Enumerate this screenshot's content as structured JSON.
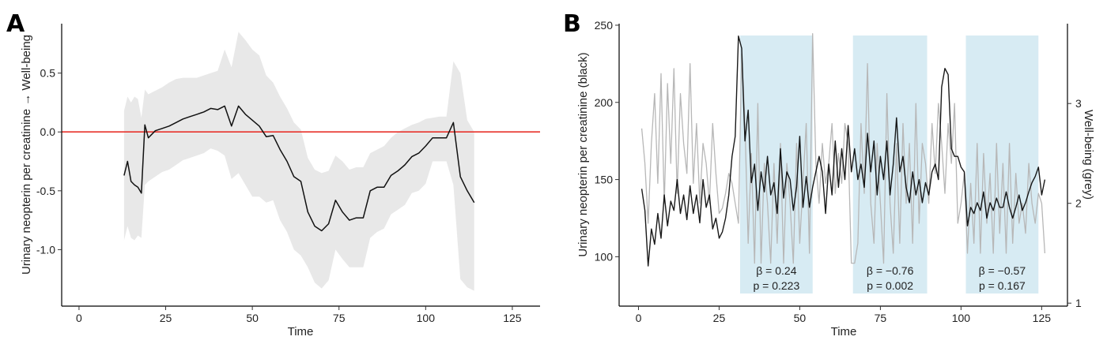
{
  "chart_data": [
    {
      "panel": "A",
      "type": "line",
      "xlabel": "Time",
      "ylabel": "Urinary neopterin per creatinine → Well-being",
      "xlim": [
        -5,
        133
      ],
      "ylim": [
        -1.48,
        0.92
      ],
      "xticks": [
        0,
        25,
        50,
        75,
        100,
        125
      ],
      "yticks": [
        {
          "value": 0.5,
          "label": "0.5"
        },
        {
          "value": 0.0,
          "label": "0.0"
        },
        {
          "value": -0.5,
          "label": "-0.5"
        },
        {
          "value": -1.0,
          "label": "-1.0"
        }
      ],
      "reference_line": {
        "y": 0,
        "color": "#e8322b"
      },
      "band_color": "#e8e8e8",
      "line_color": "#111111",
      "series": [
        {
          "x": [
            13,
            14,
            15,
            16,
            17,
            18,
            19,
            20,
            22,
            24,
            26,
            28,
            30,
            32,
            34,
            36,
            38,
            40,
            42,
            44,
            46,
            48,
            50,
            52,
            54,
            56,
            58,
            60,
            62,
            64,
            66,
            68,
            70,
            72,
            74,
            76,
            78,
            80,
            82,
            84,
            86,
            88,
            90,
            92,
            94,
            96,
            98,
            100,
            102,
            104,
            106,
            108,
            110,
            112,
            114
          ],
          "y": [
            -0.37,
            -0.25,
            -0.42,
            -0.45,
            -0.47,
            -0.52,
            0.06,
            -0.05,
            0.01,
            0.03,
            0.05,
            0.08,
            0.11,
            0.13,
            0.15,
            0.17,
            0.2,
            0.19,
            0.22,
            0.05,
            0.22,
            0.15,
            0.1,
            0.05,
            -0.04,
            -0.03,
            -0.15,
            -0.25,
            -0.38,
            -0.42,
            -0.68,
            -0.8,
            -0.84,
            -0.78,
            -0.58,
            -0.68,
            -0.75,
            -0.73,
            -0.73,
            -0.5,
            -0.47,
            -0.47,
            -0.37,
            -0.33,
            -0.28,
            -0.21,
            -0.18,
            -0.12,
            -0.05,
            -0.05,
            -0.05,
            0.08,
            -0.38,
            -0.5,
            -0.6
          ],
          "upper": [
            0.18,
            0.3,
            0.25,
            0.3,
            0.28,
            0.12,
            0.36,
            0.32,
            0.35,
            0.38,
            0.42,
            0.45,
            0.46,
            0.46,
            0.46,
            0.48,
            0.5,
            0.52,
            0.7,
            0.55,
            0.85,
            0.78,
            0.7,
            0.65,
            0.48,
            0.42,
            0.3,
            0.2,
            0.08,
            0.02,
            -0.22,
            -0.32,
            -0.35,
            -0.33,
            -0.2,
            -0.25,
            -0.32,
            -0.3,
            -0.3,
            -0.18,
            -0.15,
            -0.12,
            -0.05,
            0.0,
            0.03,
            0.06,
            0.08,
            0.11,
            0.12,
            0.13,
            0.13,
            0.6,
            0.5,
            0.1,
            0.0
          ],
          "lower": [
            -0.92,
            -0.8,
            -0.9,
            -0.92,
            -0.88,
            -0.9,
            -0.45,
            -0.42,
            -0.38,
            -0.34,
            -0.32,
            -0.28,
            -0.24,
            -0.22,
            -0.2,
            -0.18,
            -0.14,
            -0.16,
            -0.2,
            -0.4,
            -0.35,
            -0.45,
            -0.55,
            -0.55,
            -0.6,
            -0.58,
            -0.75,
            -0.85,
            -1.0,
            -1.05,
            -1.15,
            -1.28,
            -1.33,
            -1.26,
            -1.0,
            -1.08,
            -1.15,
            -1.15,
            -1.15,
            -0.9,
            -0.85,
            -0.82,
            -0.7,
            -0.66,
            -0.62,
            -0.52,
            -0.5,
            -0.44,
            -0.25,
            -0.25,
            -0.25,
            -0.45,
            -1.25,
            -1.32,
            -1.35
          ]
        }
      ]
    },
    {
      "panel": "B",
      "type": "line",
      "xlabel": "Time",
      "ylabel": "Urinary neopterin per creatinine (black)",
      "ylabel_right": "Well-being (grey)",
      "xlim": [
        -6,
        133
      ],
      "ylim": [
        68,
        251
      ],
      "ylim_right": [
        0.97,
        3.8
      ],
      "xticks": [
        0,
        25,
        50,
        75,
        100,
        125
      ],
      "yticks": [
        100,
        150,
        200,
        250
      ],
      "yticks_right": [
        1,
        2,
        3
      ],
      "shaded_regions": [
        {
          "x0": 31.5,
          "x1": 54,
          "beta": "β = 0.24",
          "p": "p = 0.223"
        },
        {
          "x0": 66.5,
          "x1": 89.5,
          "beta": "β = −0.76",
          "p": "p = 0.002"
        },
        {
          "x0": 101.5,
          "x1": 124,
          "beta": "β = −0.57",
          "p": "p = 0.167"
        }
      ],
      "shade_color": "#d7ebf3",
      "series": [
        {
          "axis": "left",
          "color": "#000000",
          "x": [
            1,
            2,
            3,
            4,
            5,
            6,
            7,
            8,
            9,
            10,
            11,
            12,
            13,
            14,
            15,
            16,
            17,
            18,
            19,
            20,
            21,
            22,
            23,
            24,
            25,
            26,
            27,
            28,
            29,
            30,
            31,
            32,
            33,
            34,
            35,
            36,
            37,
            38,
            39,
            40,
            41,
            42,
            43,
            44,
            45,
            46,
            47,
            48,
            49,
            50,
            51,
            52,
            53,
            54,
            55,
            56,
            57,
            58,
            59,
            60,
            61,
            62,
            63,
            64,
            65,
            66,
            67,
            68,
            69,
            70,
            71,
            72,
            73,
            74,
            75,
            76,
            77,
            78,
            79,
            80,
            81,
            82,
            83,
            84,
            85,
            86,
            87,
            88,
            89,
            90,
            91,
            92,
            93,
            94,
            95,
            96,
            97,
            98,
            99,
            100,
            101,
            102,
            103,
            104,
            105,
            106,
            107,
            108,
            109,
            110,
            111,
            112,
            113,
            114,
            115,
            116,
            117,
            118,
            119,
            120,
            121,
            122,
            123,
            124,
            125,
            126
          ],
          "y": [
            144,
            130,
            94,
            118,
            108,
            128,
            112,
            140,
            120,
            136,
            130,
            150,
            128,
            140,
            124,
            146,
            128,
            140,
            122,
            150,
            132,
            140,
            118,
            125,
            112,
            116,
            125,
            140,
            165,
            178,
            243,
            235,
            175,
            195,
            148,
            160,
            130,
            155,
            142,
            165,
            140,
            148,
            128,
            170,
            138,
            155,
            150,
            130,
            145,
            178,
            132,
            152,
            132,
            145,
            155,
            165,
            155,
            128,
            160,
            140,
            175,
            145,
            170,
            150,
            185,
            155,
            170,
            150,
            160,
            145,
            180,
            155,
            175,
            140,
            165,
            150,
            175,
            140,
            160,
            190,
            155,
            165,
            145,
            135,
            155,
            140,
            150,
            135,
            148,
            140,
            155,
            160,
            150,
            210,
            222,
            218,
            170,
            165,
            165,
            158,
            155,
            120,
            132,
            128,
            135,
            130,
            142,
            125,
            135,
            130,
            138,
            132,
            132,
            142,
            132,
            125,
            132,
            140,
            130,
            135,
            142,
            148,
            152,
            158,
            140,
            150
          ]
        },
        {
          "axis": "right",
          "color": "#b7b7b7",
          "x": [
            1,
            2,
            3,
            4,
            5,
            6,
            7,
            8,
            9,
            10,
            11,
            12,
            13,
            14,
            15,
            16,
            17,
            18,
            19,
            20,
            21,
            22,
            23,
            24,
            25,
            26,
            27,
            28,
            29,
            30,
            31,
            32,
            33,
            34,
            35,
            36,
            37,
            38,
            39,
            40,
            41,
            42,
            43,
            44,
            45,
            46,
            47,
            48,
            49,
            50,
            51,
            52,
            53,
            54,
            55,
            56,
            57,
            58,
            59,
            60,
            61,
            62,
            63,
            64,
            65,
            66,
            67,
            68,
            69,
            70,
            71,
            72,
            73,
            74,
            75,
            76,
            77,
            78,
            79,
            80,
            81,
            82,
            83,
            84,
            85,
            86,
            87,
            88,
            89,
            90,
            91,
            92,
            93,
            94,
            95,
            96,
            97,
            98,
            99,
            100,
            101,
            102,
            103,
            104,
            105,
            106,
            107,
            108,
            109,
            110,
            111,
            112,
            113,
            114,
            115,
            116,
            117,
            118,
            119,
            120,
            121,
            122,
            123,
            124,
            125,
            126
          ],
          "y": [
            2.75,
            2.4,
            1.8,
            2.6,
            3.1,
            2.2,
            3.3,
            2.0,
            3.2,
            2.4,
            3.35,
            2.1,
            3.1,
            2.6,
            2.3,
            3.4,
            2.2,
            2.8,
            2.0,
            2.6,
            2.4,
            2.0,
            2.8,
            2.3,
            1.9,
            1.95,
            2.1,
            2.3,
            2.2,
            2.0,
            1.8,
            3.5,
            2.8,
            1.6,
            2.5,
            1.4,
            3.0,
            1.4,
            2.4,
            2.0,
            1.4,
            2.4,
            1.6,
            2.6,
            1.4,
            2.4,
            2.0,
            1.4,
            2.6,
            1.6,
            2.2,
            2.8,
            1.5,
            3.7,
            2.4,
            2.0,
            2.6,
            2.2,
            2.4,
            2.8,
            2.1,
            2.5,
            2.2,
            2.8,
            2.6,
            1.4,
            1.4,
            1.6,
            2.8,
            2.1,
            3.4,
            2.0,
            1.6,
            2.6,
            2.0,
            1.4,
            3.1,
            2.0,
            1.5,
            2.6,
            1.6,
            2.8,
            2.0,
            2.6,
            1.6,
            3.0,
            1.8,
            2.6,
            2.4,
            2.0,
            2.8,
            2.3,
            3.0,
            2.6,
            2.1,
            2.8,
            2.4,
            3.0,
            1.8,
            2.0,
            2.3,
            1.5,
            2.2,
            1.6,
            2.6,
            1.5,
            2.5,
            1.8,
            2.3,
            1.5,
            2.6,
            1.7,
            2.4,
            1.5,
            2.6,
            1.6,
            2.3,
            1.8,
            2.0,
            1.7,
            2.4,
            2.0,
            1.8,
            2.1,
            2.0,
            1.5
          ]
        }
      ]
    }
  ]
}
